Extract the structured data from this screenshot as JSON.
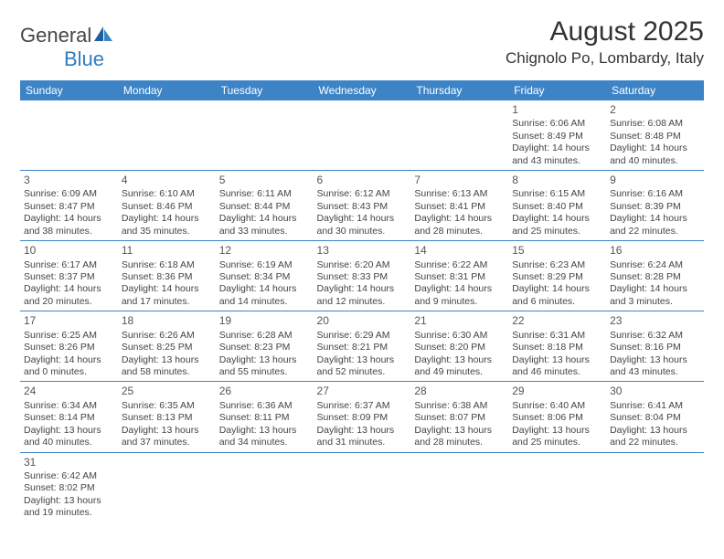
{
  "logo": {
    "text1": "General",
    "text2": "Blue"
  },
  "title": "August 2025",
  "location": "Chignolo Po, Lombardy, Italy",
  "colors": {
    "header_bg": "#3d84c6",
    "header_text": "#ffffff",
    "border": "#3d84c6",
    "text": "#444444",
    "logo_gray": "#464646",
    "logo_blue": "#2f7cc0"
  },
  "fonts": {
    "title_size": 30,
    "location_size": 17,
    "dayheader_size": 12,
    "cell_size": 10.5
  },
  "day_headers": [
    "Sunday",
    "Monday",
    "Tuesday",
    "Wednesday",
    "Thursday",
    "Friday",
    "Saturday"
  ],
  "weeks": [
    [
      null,
      null,
      null,
      null,
      null,
      {
        "n": "1",
        "sr": "Sunrise: 6:06 AM",
        "ss": "Sunset: 8:49 PM",
        "d1": "Daylight: 14 hours",
        "d2": "and 43 minutes."
      },
      {
        "n": "2",
        "sr": "Sunrise: 6:08 AM",
        "ss": "Sunset: 8:48 PM",
        "d1": "Daylight: 14 hours",
        "d2": "and 40 minutes."
      }
    ],
    [
      {
        "n": "3",
        "sr": "Sunrise: 6:09 AM",
        "ss": "Sunset: 8:47 PM",
        "d1": "Daylight: 14 hours",
        "d2": "and 38 minutes."
      },
      {
        "n": "4",
        "sr": "Sunrise: 6:10 AM",
        "ss": "Sunset: 8:46 PM",
        "d1": "Daylight: 14 hours",
        "d2": "and 35 minutes."
      },
      {
        "n": "5",
        "sr": "Sunrise: 6:11 AM",
        "ss": "Sunset: 8:44 PM",
        "d1": "Daylight: 14 hours",
        "d2": "and 33 minutes."
      },
      {
        "n": "6",
        "sr": "Sunrise: 6:12 AM",
        "ss": "Sunset: 8:43 PM",
        "d1": "Daylight: 14 hours",
        "d2": "and 30 minutes."
      },
      {
        "n": "7",
        "sr": "Sunrise: 6:13 AM",
        "ss": "Sunset: 8:41 PM",
        "d1": "Daylight: 14 hours",
        "d2": "and 28 minutes."
      },
      {
        "n": "8",
        "sr": "Sunrise: 6:15 AM",
        "ss": "Sunset: 8:40 PM",
        "d1": "Daylight: 14 hours",
        "d2": "and 25 minutes."
      },
      {
        "n": "9",
        "sr": "Sunrise: 6:16 AM",
        "ss": "Sunset: 8:39 PM",
        "d1": "Daylight: 14 hours",
        "d2": "and 22 minutes."
      }
    ],
    [
      {
        "n": "10",
        "sr": "Sunrise: 6:17 AM",
        "ss": "Sunset: 8:37 PM",
        "d1": "Daylight: 14 hours",
        "d2": "and 20 minutes."
      },
      {
        "n": "11",
        "sr": "Sunrise: 6:18 AM",
        "ss": "Sunset: 8:36 PM",
        "d1": "Daylight: 14 hours",
        "d2": "and 17 minutes."
      },
      {
        "n": "12",
        "sr": "Sunrise: 6:19 AM",
        "ss": "Sunset: 8:34 PM",
        "d1": "Daylight: 14 hours",
        "d2": "and 14 minutes."
      },
      {
        "n": "13",
        "sr": "Sunrise: 6:20 AM",
        "ss": "Sunset: 8:33 PM",
        "d1": "Daylight: 14 hours",
        "d2": "and 12 minutes."
      },
      {
        "n": "14",
        "sr": "Sunrise: 6:22 AM",
        "ss": "Sunset: 8:31 PM",
        "d1": "Daylight: 14 hours",
        "d2": "and 9 minutes."
      },
      {
        "n": "15",
        "sr": "Sunrise: 6:23 AM",
        "ss": "Sunset: 8:29 PM",
        "d1": "Daylight: 14 hours",
        "d2": "and 6 minutes."
      },
      {
        "n": "16",
        "sr": "Sunrise: 6:24 AM",
        "ss": "Sunset: 8:28 PM",
        "d1": "Daylight: 14 hours",
        "d2": "and 3 minutes."
      }
    ],
    [
      {
        "n": "17",
        "sr": "Sunrise: 6:25 AM",
        "ss": "Sunset: 8:26 PM",
        "d1": "Daylight: 14 hours",
        "d2": "and 0 minutes."
      },
      {
        "n": "18",
        "sr": "Sunrise: 6:26 AM",
        "ss": "Sunset: 8:25 PM",
        "d1": "Daylight: 13 hours",
        "d2": "and 58 minutes."
      },
      {
        "n": "19",
        "sr": "Sunrise: 6:28 AM",
        "ss": "Sunset: 8:23 PM",
        "d1": "Daylight: 13 hours",
        "d2": "and 55 minutes."
      },
      {
        "n": "20",
        "sr": "Sunrise: 6:29 AM",
        "ss": "Sunset: 8:21 PM",
        "d1": "Daylight: 13 hours",
        "d2": "and 52 minutes."
      },
      {
        "n": "21",
        "sr": "Sunrise: 6:30 AM",
        "ss": "Sunset: 8:20 PM",
        "d1": "Daylight: 13 hours",
        "d2": "and 49 minutes."
      },
      {
        "n": "22",
        "sr": "Sunrise: 6:31 AM",
        "ss": "Sunset: 8:18 PM",
        "d1": "Daylight: 13 hours",
        "d2": "and 46 minutes."
      },
      {
        "n": "23",
        "sr": "Sunrise: 6:32 AM",
        "ss": "Sunset: 8:16 PM",
        "d1": "Daylight: 13 hours",
        "d2": "and 43 minutes."
      }
    ],
    [
      {
        "n": "24",
        "sr": "Sunrise: 6:34 AM",
        "ss": "Sunset: 8:14 PM",
        "d1": "Daylight: 13 hours",
        "d2": "and 40 minutes."
      },
      {
        "n": "25",
        "sr": "Sunrise: 6:35 AM",
        "ss": "Sunset: 8:13 PM",
        "d1": "Daylight: 13 hours",
        "d2": "and 37 minutes."
      },
      {
        "n": "26",
        "sr": "Sunrise: 6:36 AM",
        "ss": "Sunset: 8:11 PM",
        "d1": "Daylight: 13 hours",
        "d2": "and 34 minutes."
      },
      {
        "n": "27",
        "sr": "Sunrise: 6:37 AM",
        "ss": "Sunset: 8:09 PM",
        "d1": "Daylight: 13 hours",
        "d2": "and 31 minutes."
      },
      {
        "n": "28",
        "sr": "Sunrise: 6:38 AM",
        "ss": "Sunset: 8:07 PM",
        "d1": "Daylight: 13 hours",
        "d2": "and 28 minutes."
      },
      {
        "n": "29",
        "sr": "Sunrise: 6:40 AM",
        "ss": "Sunset: 8:06 PM",
        "d1": "Daylight: 13 hours",
        "d2": "and 25 minutes."
      },
      {
        "n": "30",
        "sr": "Sunrise: 6:41 AM",
        "ss": "Sunset: 8:04 PM",
        "d1": "Daylight: 13 hours",
        "d2": "and 22 minutes."
      }
    ],
    [
      {
        "n": "31",
        "sr": "Sunrise: 6:42 AM",
        "ss": "Sunset: 8:02 PM",
        "d1": "Daylight: 13 hours",
        "d2": "and 19 minutes."
      },
      null,
      null,
      null,
      null,
      null,
      null
    ]
  ]
}
